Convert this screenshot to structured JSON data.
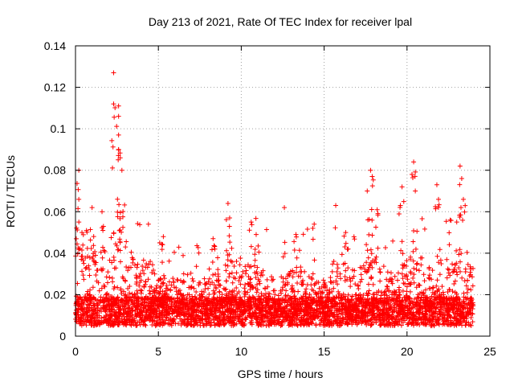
{
  "chart_data": {
    "type": "scatter",
    "title": "Day 213 of 2021, Rate Of TEC Index for receiver lpal",
    "xlabel": "GPS time / hours",
    "ylabel": "ROTI / TECUs",
    "xlim": [
      0,
      25
    ],
    "ylim": [
      0,
      0.14
    ],
    "xticks": [
      0,
      5,
      10,
      15,
      20,
      25
    ],
    "xtick_labels": [
      "0",
      "5",
      "10",
      "15",
      "20",
      "25"
    ],
    "yticks": [
      0,
      0.02,
      0.04,
      0.06,
      0.08,
      0.1,
      0.12,
      0.14
    ],
    "ytick_labels": [
      "0",
      "0.02",
      "0.04",
      "0.06",
      "0.08",
      "0.1",
      "0.12",
      "0.14"
    ],
    "grid": true,
    "marker": "+",
    "color": "#ff0000",
    "series": [
      {
        "name": "ROTI",
        "x_range_hours": [
          0,
          24
        ],
        "baseline_level": 0.012,
        "typical_band": [
          0.003,
          0.035
        ],
        "notable_peaks": [
          {
            "x": 2.3,
            "y": 0.127
          },
          {
            "x": 2.3,
            "y": 0.112
          },
          {
            "x": 2.6,
            "y": 0.111
          },
          {
            "x": 2.6,
            "y": 0.106
          },
          {
            "x": 2.6,
            "y": 0.097
          },
          {
            "x": 2.6,
            "y": 0.09
          },
          {
            "x": 2.7,
            "y": 0.086
          },
          {
            "x": 0.2,
            "y": 0.08
          },
          {
            "x": 2.8,
            "y": 0.08
          },
          {
            "x": 0.2,
            "y": 0.066
          },
          {
            "x": 1.0,
            "y": 0.062
          },
          {
            "x": 1.6,
            "y": 0.06
          },
          {
            "x": 4.4,
            "y": 0.054
          },
          {
            "x": 5.3,
            "y": 0.048
          },
          {
            "x": 8.3,
            "y": 0.047
          },
          {
            "x": 9.2,
            "y": 0.064
          },
          {
            "x": 9.3,
            "y": 0.057
          },
          {
            "x": 10.6,
            "y": 0.055
          },
          {
            "x": 10.9,
            "y": 0.049
          },
          {
            "x": 12.6,
            "y": 0.062
          },
          {
            "x": 13.3,
            "y": 0.049
          },
          {
            "x": 14.4,
            "y": 0.054
          },
          {
            "x": 15.7,
            "y": 0.063
          },
          {
            "x": 16.3,
            "y": 0.05
          },
          {
            "x": 17.8,
            "y": 0.08
          },
          {
            "x": 17.9,
            "y": 0.077
          },
          {
            "x": 17.6,
            "y": 0.07
          },
          {
            "x": 18.2,
            "y": 0.061
          },
          {
            "x": 19.7,
            "y": 0.072
          },
          {
            "x": 19.6,
            "y": 0.063
          },
          {
            "x": 20.4,
            "y": 0.084
          },
          {
            "x": 20.3,
            "y": 0.078
          },
          {
            "x": 20.5,
            "y": 0.07
          },
          {
            "x": 21.8,
            "y": 0.073
          },
          {
            "x": 21.9,
            "y": 0.066
          },
          {
            "x": 22.6,
            "y": 0.056
          },
          {
            "x": 23.2,
            "y": 0.082
          },
          {
            "x": 23.3,
            "y": 0.076
          },
          {
            "x": 23.4,
            "y": 0.066
          },
          {
            "x": 23.0,
            "y": 0.055
          }
        ]
      }
    ]
  }
}
